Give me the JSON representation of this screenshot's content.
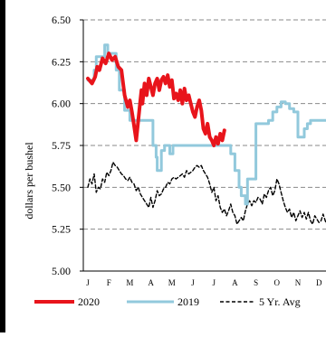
{
  "chart_data": {
    "type": "line",
    "title": "",
    "xlabel": "",
    "ylabel": "dollars per bushel",
    "ylim": [
      5.0,
      6.5
    ],
    "yticks": [
      "5.00",
      "5.25",
      "5.50",
      "5.75",
      "6.00",
      "6.25",
      "6.50"
    ],
    "categories": [
      "J",
      "F",
      "M",
      "A",
      "M",
      "J",
      "J",
      "A",
      "S",
      "O",
      "N",
      "D"
    ],
    "grid": "horizontal dashed",
    "legend_position": "bottom",
    "series": [
      {
        "name": "2020",
        "color": "#e8141b",
        "style": "solid-thick",
        "x": [
          0.0,
          0.2,
          0.35,
          0.45,
          0.55,
          0.7,
          0.85,
          1.0,
          1.15,
          1.3,
          1.45,
          1.6,
          1.75,
          1.9,
          2.0,
          2.1,
          2.2,
          2.3,
          2.4,
          2.5,
          2.55,
          2.6,
          2.7,
          2.8,
          2.9,
          3.0,
          3.1,
          3.2,
          3.3,
          3.4,
          3.5,
          3.6,
          3.7,
          3.8,
          3.9,
          4.0,
          4.1,
          4.2,
          4.3,
          4.4,
          4.5,
          4.6,
          4.7,
          4.8,
          4.9,
          5.0,
          5.1,
          5.2,
          5.3,
          5.4,
          5.5,
          5.6,
          5.7,
          5.8,
          5.9,
          6.0,
          6.1,
          6.2,
          6.3,
          6.4,
          6.5
        ],
        "values": [
          6.15,
          6.12,
          6.16,
          6.22,
          6.2,
          6.27,
          6.24,
          6.3,
          6.26,
          6.28,
          6.22,
          6.2,
          6.05,
          5.98,
          6.02,
          5.95,
          5.87,
          5.78,
          5.9,
          6.02,
          6.08,
          6.0,
          6.12,
          6.05,
          6.15,
          6.1,
          6.05,
          6.12,
          6.15,
          6.08,
          6.14,
          6.16,
          6.12,
          6.17,
          6.1,
          6.14,
          6.03,
          6.06,
          6.02,
          6.08,
          6.0,
          6.09,
          6.02,
          6.05,
          6.0,
          5.95,
          5.92,
          5.98,
          6.02,
          5.96,
          5.85,
          5.82,
          5.88,
          5.8,
          5.78,
          5.75,
          5.8,
          5.76,
          5.82,
          5.78,
          5.84
        ]
      },
      {
        "name": "2019",
        "color": "#92c9dc",
        "style": "solid",
        "x": [
          0.0,
          0.3,
          0.3,
          0.4,
          0.4,
          0.8,
          0.8,
          0.95,
          0.95,
          1.35,
          1.35,
          1.5,
          1.5,
          1.75,
          1.75,
          2.0,
          2.0,
          2.1,
          2.1,
          3.1,
          3.1,
          3.25,
          3.25,
          3.3,
          3.3,
          3.5,
          3.5,
          3.65,
          3.65,
          3.9,
          3.9,
          4.05,
          4.05,
          6.8,
          6.8,
          7.0,
          7.0,
          7.2,
          7.2,
          7.3,
          7.3,
          7.5,
          7.5,
          7.6,
          7.6,
          8.0,
          8.0,
          8.6,
          8.6,
          8.8,
          8.8,
          9.0,
          9.0,
          9.2,
          9.2,
          9.4,
          9.4,
          9.6,
          9.6,
          9.8,
          9.8,
          10.0,
          10.0,
          10.3,
          10.3,
          10.45,
          10.45,
          10.6,
          10.6,
          10.75,
          10.75,
          11.4
        ],
        "values": [
          6.14,
          6.14,
          6.2,
          6.2,
          6.28,
          6.28,
          6.35,
          6.35,
          6.3,
          6.3,
          6.2,
          6.2,
          6.08,
          6.08,
          5.96,
          5.96,
          5.9,
          5.9,
          5.9,
          5.9,
          5.75,
          5.75,
          5.68,
          5.68,
          5.6,
          5.6,
          5.72,
          5.72,
          5.75,
          5.75,
          5.7,
          5.7,
          5.75,
          5.75,
          5.7,
          5.7,
          5.6,
          5.6,
          5.5,
          5.5,
          5.45,
          5.45,
          5.4,
          5.4,
          5.55,
          5.55,
          5.88,
          5.88,
          5.9,
          5.9,
          5.95,
          5.95,
          5.98,
          5.98,
          6.01,
          6.01,
          6.0,
          6.0,
          5.97,
          5.97,
          5.95,
          5.95,
          5.8,
          5.8,
          5.85,
          5.85,
          5.88,
          5.88,
          5.9,
          5.9,
          5.9,
          5.9
        ]
      },
      {
        "name": "5 Yr. Avg",
        "color": "#000000",
        "style": "dashed",
        "x": [
          0.0,
          0.1,
          0.2,
          0.3,
          0.4,
          0.5,
          0.6,
          0.7,
          0.8,
          0.9,
          1.0,
          1.1,
          1.2,
          1.3,
          1.4,
          1.5,
          1.6,
          1.7,
          1.8,
          1.9,
          2.0,
          2.1,
          2.2,
          2.3,
          2.4,
          2.5,
          2.6,
          2.7,
          2.8,
          2.9,
          3.0,
          3.1,
          3.2,
          3.3,
          3.4,
          3.5,
          3.6,
          3.7,
          3.8,
          3.9,
          4.0,
          4.1,
          4.2,
          4.3,
          4.4,
          4.5,
          4.6,
          4.7,
          4.8,
          4.9,
          5.0,
          5.1,
          5.2,
          5.3,
          5.4,
          5.5,
          5.6,
          5.7,
          5.8,
          5.9,
          6.0,
          6.1,
          6.2,
          6.3,
          6.4,
          6.5,
          6.6,
          6.7,
          6.8,
          6.9,
          7.0,
          7.1,
          7.2,
          7.3,
          7.4,
          7.5,
          7.6,
          7.7,
          7.8,
          7.9,
          8.0,
          8.1,
          8.2,
          8.3,
          8.4,
          8.5,
          8.6,
          8.7,
          8.8,
          8.9,
          9.0,
          9.1,
          9.2,
          9.3,
          9.4,
          9.5,
          9.6,
          9.7,
          9.8,
          9.9,
          10.0,
          10.1,
          10.2,
          10.3,
          10.4,
          10.5,
          10.6,
          10.7,
          10.8,
          10.9,
          11.0,
          11.1,
          11.2,
          11.3,
          11.4
        ],
        "values": [
          5.5,
          5.55,
          5.52,
          5.58,
          5.47,
          5.5,
          5.49,
          5.55,
          5.53,
          5.59,
          5.57,
          5.6,
          5.65,
          5.63,
          5.62,
          5.6,
          5.58,
          5.57,
          5.55,
          5.54,
          5.56,
          5.53,
          5.52,
          5.48,
          5.5,
          5.46,
          5.44,
          5.42,
          5.4,
          5.38,
          5.44,
          5.38,
          5.42,
          5.48,
          5.45,
          5.46,
          5.49,
          5.5,
          5.53,
          5.52,
          5.55,
          5.56,
          5.55,
          5.56,
          5.57,
          5.58,
          5.56,
          5.6,
          5.58,
          5.59,
          5.6,
          5.62,
          5.63,
          5.62,
          5.63,
          5.6,
          5.58,
          5.56,
          5.52,
          5.47,
          5.5,
          5.42,
          5.45,
          5.38,
          5.35,
          5.37,
          5.33,
          5.36,
          5.4,
          5.35,
          5.33,
          5.28,
          5.3,
          5.32,
          5.3,
          5.36,
          5.4,
          5.42,
          5.39,
          5.42,
          5.41,
          5.44,
          5.43,
          5.4,
          5.46,
          5.44,
          5.48,
          5.5,
          5.45,
          5.48,
          5.55,
          5.52,
          5.47,
          5.42,
          5.38,
          5.35,
          5.37,
          5.32,
          5.35,
          5.3,
          5.33,
          5.36,
          5.32,
          5.35,
          5.31,
          5.35,
          5.3,
          5.28,
          5.33,
          5.31,
          5.29,
          5.3,
          5.34,
          5.3,
          5.27
        ]
      }
    ]
  }
}
